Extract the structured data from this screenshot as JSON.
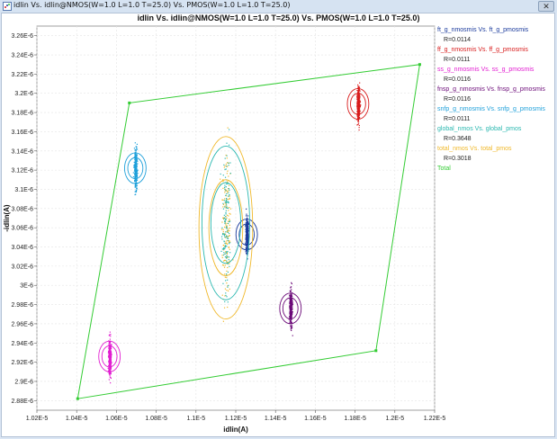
{
  "window": {
    "title": "idlin Vs. idlin@NMOS(W=1.0 L=1.0 T=25.0) Vs. PMOS(W=1.0 L=1.0 T=25.0)",
    "close_label": "✕",
    "app_icon": "scatter-chart-icon"
  },
  "chart_data": {
    "type": "scatter",
    "title": "idlin Vs. idlin@NMOS(W=1.0 L=1.0 T=25.0) Vs. PMOS(W=1.0 L=1.0 T=25.0)",
    "xlabel": "idlin(A)",
    "ylabel": "-idlin(A)",
    "xlim": [
      1.02e-05,
      1.22e-05
    ],
    "ylim": [
      2.87e-06,
      3.27e-06
    ],
    "x_ticks": [
      "1.02E-5",
      "1.04E-5",
      "1.06E-5",
      "1.08E-5",
      "1.1E-5",
      "1.12E-5",
      "1.14E-5",
      "1.16E-5",
      "1.18E-5",
      "1.2E-5",
      "1.22E-5"
    ],
    "y_ticks": [
      "2.88E-6",
      "2.9E-6",
      "2.92E-6",
      "2.94E-6",
      "2.96E-6",
      "2.98E-6",
      "3E-6",
      "3.02E-6",
      "3.04E-6",
      "3.06E-6",
      "3.08E-6",
      "3.1E-6",
      "3.12E-6",
      "3.14E-6",
      "3.16E-6",
      "3.18E-6",
      "3.2E-6",
      "3.22E-6",
      "3.24E-6",
      "3.26E-6"
    ],
    "grid": true,
    "legend_position": "right",
    "series": [
      {
        "name": "ft_g_nmosmis Vs. ft_g_pmosmis",
        "r": "R=0.0114",
        "color": "#1a3a9c",
        "center": [
          1.1255e-05,
          3.053e-06
        ],
        "spread": [
          3.5e-08,
          9e-09
        ],
        "n": 380,
        "rings": [
          [
            3.8e-08,
            1.1e-08
          ],
          [
            5.4e-08,
            1.6e-08
          ]
        ]
      },
      {
        "name": "ff_g_nmosmis Vs. ff_g_pmosmis",
        "r": "R=0.0111",
        "color": "#d81c1c",
        "center": [
          1.1815e-05,
          3.189e-06
        ],
        "spread": [
          3.5e-08,
          9e-09
        ],
        "n": 380,
        "rings": [
          [
            3.8e-08,
            1.1e-08
          ],
          [
            5.4e-08,
            1.6e-08
          ]
        ]
      },
      {
        "name": "ss_g_nmosmis Vs. ss_g_pmosmis",
        "r": "R=0.0116",
        "color": "#e21fd1",
        "center": [
          1.0565e-05,
          2.926e-06
        ],
        "spread": [
          3.5e-08,
          9e-09
        ],
        "n": 380,
        "rings": [
          [
            3.8e-08,
            1.1e-08
          ],
          [
            5.4e-08,
            1.6e-08
          ]
        ]
      },
      {
        "name": "fnsp_g_nmosmis Vs. fnsp_g_pmosmis",
        "r": "R=0.0116",
        "color": "#6b0a78",
        "center": [
          1.1475e-05,
          2.976e-06
        ],
        "spread": [
          3.5e-08,
          9e-09
        ],
        "n": 380,
        "rings": [
          [
            3.8e-08,
            1.1e-08
          ],
          [
            5.4e-08,
            1.6e-08
          ]
        ]
      },
      {
        "name": "snfp_g_nmosmis Vs. snfp_g_pmosmis",
        "r": "R=0.0111",
        "color": "#1fa0da",
        "center": [
          1.0695e-05,
          3.122e-06
        ],
        "spread": [
          3.5e-08,
          9e-09
        ],
        "n": 380,
        "rings": [
          [
            3.8e-08,
            1.1e-08
          ],
          [
            5.4e-08,
            1.6e-08
          ]
        ]
      },
      {
        "name": "global_nmos Vs. global_pmos",
        "r": "R=0.3648",
        "color": "#2bb8b0",
        "center": [
          1.115e-05,
          3.065e-06
        ],
        "spread": [
          1e-07,
          3.5e-08
        ],
        "n": 140,
        "rings": [
          [
            7.5e-08,
            4.2e-08
          ],
          [
            1.2e-07,
            8e-08
          ]
        ]
      },
      {
        "name": "total_nmos Vs. total_pmos",
        "r": "R=0.3018",
        "color": "#f0b82a",
        "center": [
          1.115e-05,
          3.06e-06
        ],
        "spread": [
          1.2e-07,
          4.5e-08
        ],
        "n": 160,
        "rings": [
          [
            8.5e-08,
            5e-08
          ],
          [
            1.35e-07,
            9.5e-08
          ]
        ]
      },
      {
        "name": "Total",
        "r": "",
        "color": "#33cc33",
        "polygon": [
          [
            1.0405e-05,
            2.882e-06
          ],
          [
            1.1905e-05,
            2.932e-06
          ],
          [
            1.2125e-05,
            3.23e-06
          ],
          [
            1.0665e-05,
            3.19e-06
          ]
        ]
      }
    ]
  }
}
